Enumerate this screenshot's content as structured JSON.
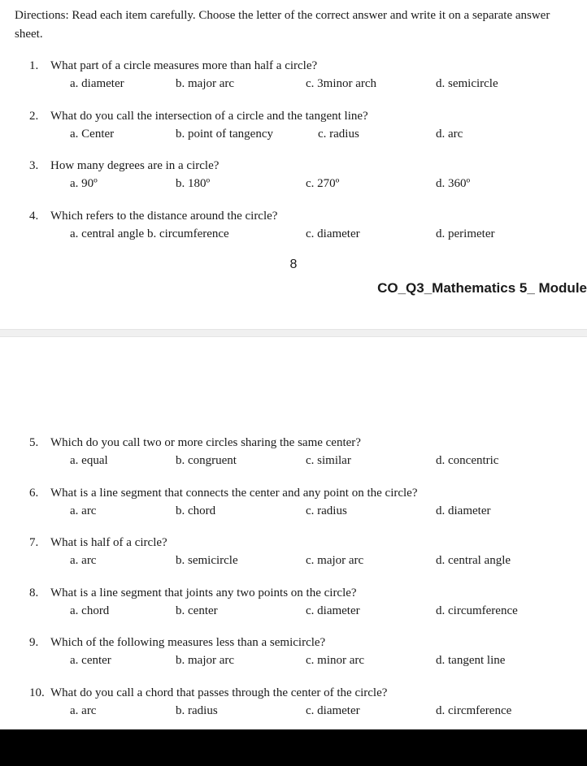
{
  "directions": "Directions: Read each item carefully. Choose the letter of the correct answer and write it on a separate answer sheet.",
  "page_number": "8",
  "footer_code": "CO_Q3_Mathematics 5_ Module",
  "questions_p1": [
    {
      "num": "1.",
      "stem": "What part of a circle measures more than half a circle?",
      "a": "a.  diameter",
      "b": "b. major arc",
      "c": "c. 3minor arch",
      "d": "d. semicircle"
    },
    {
      "num": "2.",
      "stem": "What do you call the intersection of a circle and the tangent line?",
      "a": "a.  Center",
      "b": "b. point of tangency",
      "c": "c. radius",
      "d": "d. arc"
    },
    {
      "num": "3.",
      "stem": "How many degrees are in a circle?",
      "a": "a.  90º",
      "b": "b. 180º",
      "c": "c. 270º",
      "d": "d. 360º"
    },
    {
      "num": "4.",
      "stem": "Which refers to the distance around the circle?",
      "a": "a.  central angle",
      "b": "b. circumference",
      "c": "c. diameter",
      "d": "d. perimeter"
    }
  ],
  "questions_p2": [
    {
      "num": "5.",
      "stem": "Which do you call two or more circles sharing the same center?",
      "a": "a.  equal",
      "b": "b. congruent",
      "c": "c. similar",
      "d": "d. concentric"
    },
    {
      "num": "6.",
      "stem": "What is a line segment that connects the center and any point on the circle?",
      "a": "a.  arc",
      "b": "b. chord",
      "c": "c. radius",
      "d": "d. diameter"
    },
    {
      "num": "7.",
      "stem": "What is half of a circle?",
      "a": "a.  arc",
      "b": "b. semicircle",
      "c": "c. major arc",
      "d": "d. central angle"
    },
    {
      "num": "8.",
      "stem": "What is a line segment that joints any two points on the circle?",
      "a": "a.  chord",
      "b": "b. center",
      "c": "c. diameter",
      "d": "d. circumference"
    },
    {
      "num": "9.",
      "stem": "Which of the following measures less than a semicircle?",
      "a": "a.  center",
      "b": "b. major arc",
      "c": "c. minor arc",
      "d": "d. tangent line"
    },
    {
      "num": "10.",
      "stem": "What do you call a chord that passes through the center of the circle?",
      "a": "a.  arc",
      "b": "b. radius",
      "c": "c. diameter",
      "d": "d. circmference"
    }
  ]
}
